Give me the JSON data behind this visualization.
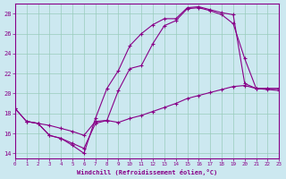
{
  "xlabel": "Windchill (Refroidissement éolien,°C)",
  "bg_color": "#cce8f0",
  "line_color": "#880088",
  "grid_color": "#99ccbb",
  "xlim": [
    0,
    23
  ],
  "ylim": [
    13.5,
    29
  ],
  "xticks": [
    0,
    1,
    2,
    3,
    4,
    5,
    6,
    7,
    8,
    9,
    10,
    11,
    12,
    13,
    14,
    15,
    16,
    17,
    18,
    19,
    20,
    21,
    22,
    23
  ],
  "yticks": [
    14,
    16,
    18,
    20,
    22,
    24,
    26,
    28
  ],
  "line1_x": [
    0,
    1,
    2,
    3,
    4,
    5,
    6,
    7,
    8,
    9,
    10,
    11,
    12,
    13,
    14,
    15,
    16,
    17,
    18,
    19,
    20,
    21,
    22,
    23
  ],
  "line1_y": [
    18.5,
    17.2,
    17.0,
    15.8,
    15.5,
    14.8,
    14.0,
    17.5,
    20.5,
    22.3,
    24.8,
    26.0,
    26.9,
    27.5,
    27.5,
    28.6,
    28.7,
    28.4,
    28.1,
    27.9,
    21.0,
    20.5,
    20.5,
    20.5
  ],
  "line2_x": [
    0,
    1,
    2,
    3,
    4,
    5,
    6,
    7,
    8,
    9,
    10,
    11,
    12,
    13,
    14,
    15,
    16,
    17,
    18,
    19,
    20,
    21,
    22,
    23
  ],
  "line2_y": [
    18.5,
    17.2,
    17.0,
    15.8,
    15.5,
    15.0,
    14.5,
    17.0,
    17.3,
    20.3,
    22.5,
    22.8,
    25.0,
    26.8,
    27.3,
    28.5,
    28.6,
    28.3,
    27.9,
    27.0,
    23.5,
    20.5,
    20.5,
    20.5
  ],
  "line3_x": [
    1,
    2,
    3,
    4,
    5,
    6,
    7,
    8,
    9,
    10,
    11,
    12,
    13,
    14,
    15,
    16,
    17,
    18,
    19,
    20,
    21,
    22,
    23
  ],
  "line3_y": [
    17.2,
    17.0,
    16.8,
    16.5,
    16.2,
    15.8,
    17.2,
    17.3,
    17.1,
    17.5,
    17.8,
    18.2,
    18.6,
    19.0,
    19.5,
    19.8,
    20.1,
    20.4,
    20.7,
    20.8,
    20.5,
    20.4,
    20.3
  ]
}
